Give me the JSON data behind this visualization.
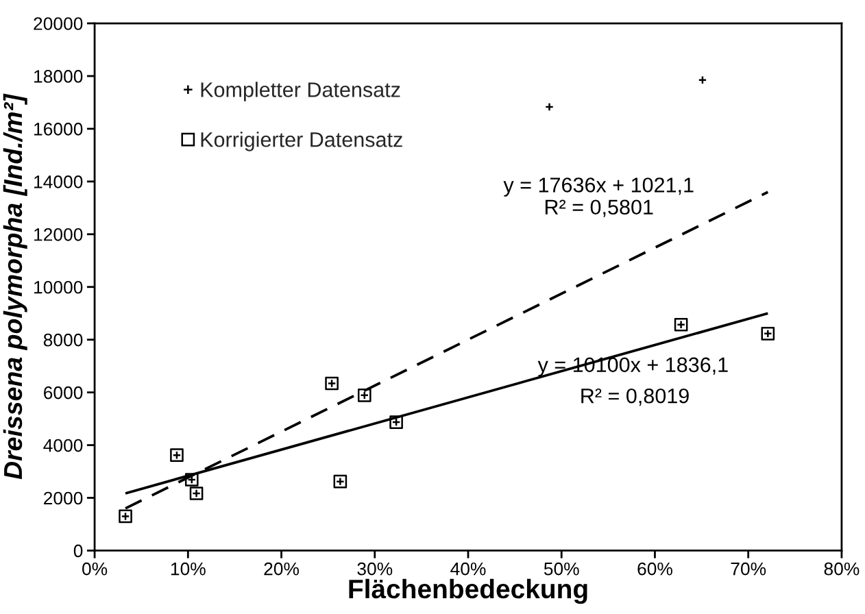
{
  "chart_data": {
    "type": "scatter",
    "xlabel": "Flächenbedeckung",
    "ylabel": "Dreissena polymorpha [Ind./m²]",
    "xlim": [
      0,
      0.8
    ],
    "xticks": [
      {
        "value": 0,
        "label": "0%"
      },
      {
        "value": 0.1,
        "label": "10%"
      },
      {
        "value": 0.2,
        "label": "20%"
      },
      {
        "value": 0.3,
        "label": "30%"
      },
      {
        "value": 0.4,
        "label": "40%"
      },
      {
        "value": 0.5,
        "label": "50%"
      },
      {
        "value": 0.6,
        "label": "60%"
      },
      {
        "value": 0.7,
        "label": "70%"
      },
      {
        "value": 0.8,
        "label": "80%"
      }
    ],
    "ylim": [
      0,
      20000
    ],
    "yticks": [
      0,
      2000,
      4000,
      6000,
      8000,
      10000,
      12000,
      14000,
      16000,
      18000,
      20000
    ],
    "legend": "top left",
    "series": [
      {
        "name": "Korrigierter Datensatz",
        "marker": "square",
        "color": "#000000",
        "x": [
          0.033,
          0.088,
          0.104,
          0.109,
          0.254,
          0.263,
          0.289,
          0.323,
          0.628,
          0.721
        ],
        "values": [
          1300,
          3620,
          2690,
          2170,
          6340,
          2620,
          5890,
          4870,
          8570,
          8230
        ]
      },
      {
        "name": "Kompletter Datensatz",
        "marker": "cross",
        "color": "#000000",
        "x": [
          0.033,
          0.088,
          0.104,
          0.109,
          0.254,
          0.263,
          0.289,
          0.323,
          0.487,
          0.628,
          0.651,
          0.721
        ],
        "values": [
          1300,
          3620,
          2690,
          2170,
          6340,
          2620,
          5890,
          4870,
          16830,
          8570,
          17850,
          8230
        ]
      },
      {
        "type": "line",
        "line_style": "dashed",
        "color": "#000000",
        "x": [
          0.033,
          0.721
        ],
        "values": [
          1600,
          13600
        ]
      },
      {
        "type": "line",
        "line_style": "solid",
        "color": "#000000",
        "x": [
          0.033,
          0.721
        ],
        "values": [
          2170,
          9000
        ]
      }
    ],
    "annotations": [
      "y = 17636x + 1021,1",
      "R² = 0,5801",
      "y = 10100x + 1836,1",
      "R² = 0,8019"
    ]
  }
}
